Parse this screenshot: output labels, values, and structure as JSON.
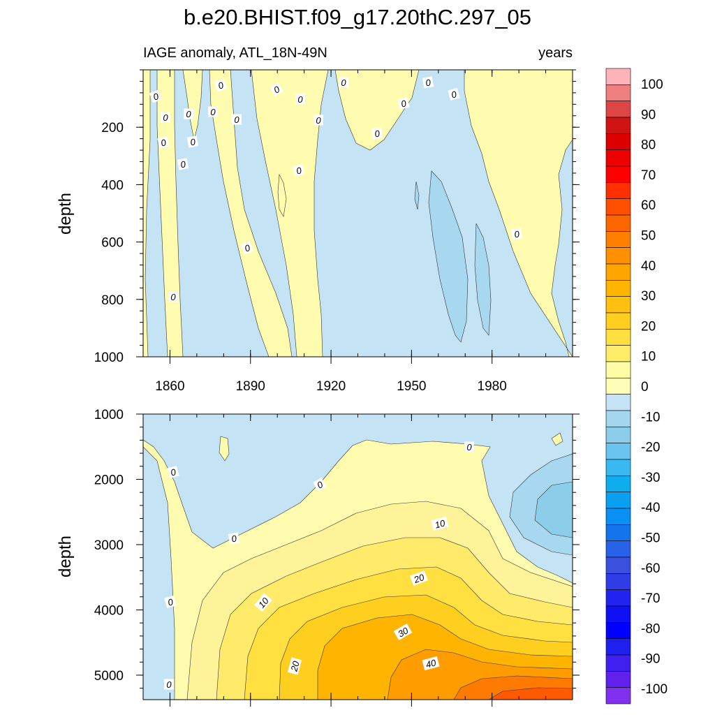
{
  "chart_data": {
    "type": "contour",
    "title": "b.e20.BHIST.f09_g17.20thC.297_05",
    "panels": [
      {
        "name": "upper",
        "left_title": "IAGE anomaly, ATL_18N-49N",
        "right_title": "years",
        "ylabel": "depth",
        "xlim": [
          1850,
          2010
        ],
        "ylim": [
          0,
          1000
        ],
        "y_reversed": true,
        "x_ticks": [
          1860,
          1890,
          1920,
          1950,
          1980
        ],
        "y_ticks": [
          200,
          400,
          600,
          800,
          1000
        ],
        "contour_labels": [
          "0",
          "0",
          "0",
          "0",
          "0",
          "0",
          "0",
          "0",
          "0",
          "0",
          "0",
          "0",
          "0",
          "0",
          "0",
          "0",
          "0",
          "0",
          "0",
          "0",
          "0",
          "0",
          "0"
        ]
      },
      {
        "name": "lower",
        "ylabel": "depth",
        "xlim": [
          1850,
          2010
        ],
        "ylim": [
          1000,
          5375
        ],
        "y_reversed": true,
        "y_ticks": [
          1000,
          2000,
          3000,
          4000,
          5000
        ],
        "contour_labels": [
          "0",
          "0",
          "0",
          "0",
          "0",
          "10",
          "20",
          "10",
          "30",
          "20",
          "40",
          "0"
        ]
      }
    ],
    "colorbar": {
      "labels": [
        "100",
        "90",
        "80",
        "70",
        "60",
        "50",
        "40",
        "30",
        "20",
        "10",
        "0",
        "-10",
        "-20",
        "-30",
        "-40",
        "-50",
        "-60",
        "-70",
        "-80",
        "-90",
        "-100"
      ],
      "colors_top_to_bottom": [
        "#fdb3ba",
        "#f08080",
        "#de4646",
        "#d01414",
        "#dd0000",
        "#ee0000",
        "#fe0000",
        "#fe3000",
        "#fe5000",
        "#fe6600",
        "#ff8000",
        "#ff9000",
        "#ffa500",
        "#ffb400",
        "#ffc010",
        "#ffcf20",
        "#ffe040",
        "#ffed6a",
        "#fffca6",
        "#fffeb8",
        "#c4e4f6",
        "#a4d7ee",
        "#8ccde9",
        "#6bc3f0",
        "#38b9f2",
        "#0eadee",
        "#0aa0f2",
        "#0a90f4",
        "#1474ec",
        "#2762e8",
        "#3c50e0",
        "#2f3de6",
        "#2124ef",
        "#1010f5",
        "#0000ff",
        "#2020ee",
        "#4020ee",
        "#6020ee",
        "#8030ee"
      ]
    }
  }
}
